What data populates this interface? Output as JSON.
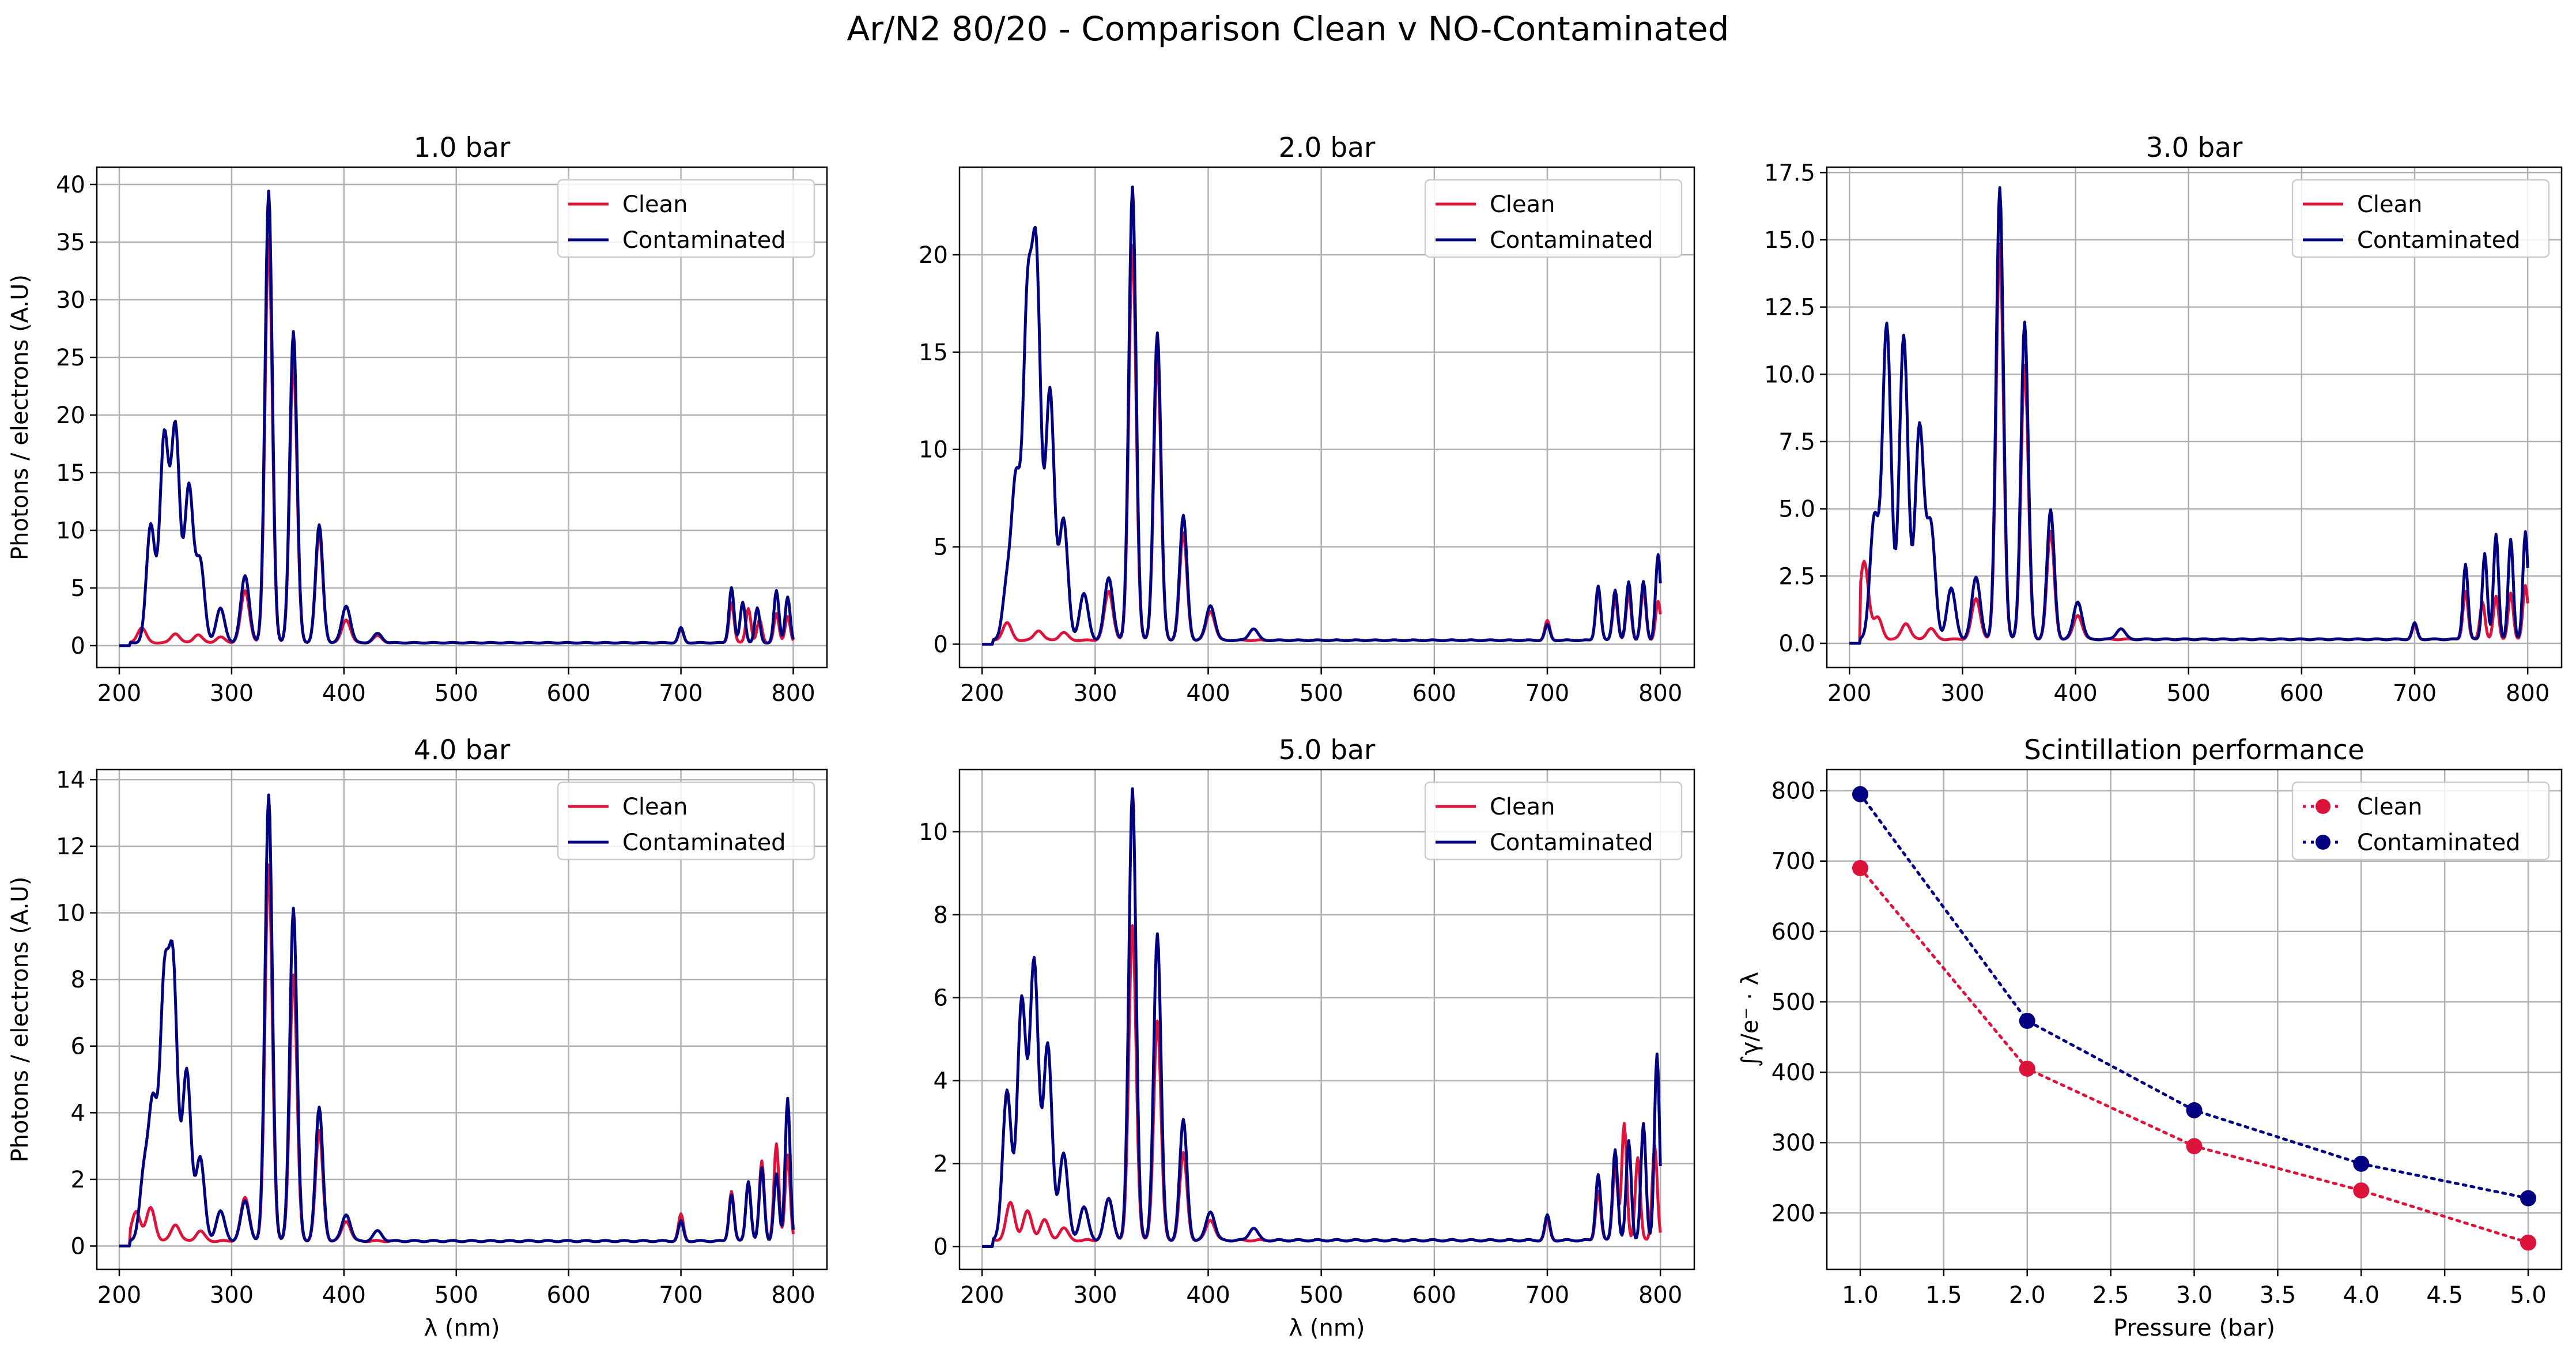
{
  "figure_title": "Ar/N2 80/20 - Comparison Clean v NO-Contaminated",
  "colors": {
    "clean": "#dc143c",
    "contaminated": "#000080",
    "grid": "#b0b0b0"
  },
  "chart_data": [
    {
      "type": "line",
      "title": "1.0 bar",
      "xlabel": "",
      "ylabel": "Photons / electrons (A.U)",
      "xlim": [
        180,
        830
      ],
      "ylim": [
        -1.9,
        41.5
      ],
      "xticks": [
        200,
        300,
        400,
        500,
        600,
        700,
        800
      ],
      "yticks": [
        0,
        5,
        10,
        15,
        20,
        25,
        30,
        35,
        40
      ],
      "grid": true,
      "legend": "top-right",
      "series": [
        {
          "name": "Clean",
          "color": "#dc143c",
          "baseline": 0.25,
          "peaks": [
            [
              220,
              1.3
            ],
            [
              250,
              0.8
            ],
            [
              270,
              0.7
            ],
            [
              290,
              0.5
            ],
            [
              312,
              4.5
            ],
            [
              333,
              35
            ],
            [
              355,
              24.5
            ],
            [
              378,
              9.5
            ],
            [
              402,
              2
            ],
            [
              430,
              0.6
            ],
            [
              700,
              1.2
            ],
            [
              745,
              3.5
            ],
            [
              760,
              3
            ],
            [
              770,
              2
            ],
            [
              785,
              2.5
            ],
            [
              795,
              2.3
            ]
          ]
        },
        {
          "name": "Contaminated",
          "color": "#000080",
          "baseline": 0.25,
          "peaks": [
            [
              228,
              10.2
            ],
            [
              240,
              17.8
            ],
            [
              250,
              18.6
            ],
            [
              262,
              13.5
            ],
            [
              272,
              7
            ],
            [
              290,
              3
            ],
            [
              312,
              5.8
            ],
            [
              333,
              39.2
            ],
            [
              355,
              27
            ],
            [
              378,
              10.2
            ],
            [
              402,
              3.2
            ],
            [
              430,
              0.8
            ],
            [
              700,
              1.3
            ],
            [
              745,
              4.8
            ],
            [
              755,
              3.5
            ],
            [
              768,
              3
            ],
            [
              785,
              4.5
            ],
            [
              795,
              4
            ]
          ]
        }
      ]
    },
    {
      "type": "line",
      "title": "2.0 bar",
      "xlabel": "",
      "ylabel": "",
      "xlim": [
        180,
        830
      ],
      "ylim": [
        -1.2,
        24.5
      ],
      "xticks": [
        200,
        300,
        400,
        500,
        600,
        700,
        800
      ],
      "yticks": [
        0,
        5,
        10,
        15,
        20
      ],
      "grid": true,
      "legend": "top-right",
      "series": [
        {
          "name": "Clean",
          "color": "#dc143c",
          "baseline": 0.2,
          "peaks": [
            [
              222,
              0.9
            ],
            [
              250,
              0.5
            ],
            [
              272,
              0.4
            ],
            [
              312,
              2.5
            ],
            [
              333,
              20.3
            ],
            [
              355,
              14.5
            ],
            [
              378,
              5.5
            ],
            [
              402,
              1.5
            ],
            [
              700,
              1
            ],
            [
              745,
              2.6
            ],
            [
              760,
              2.2
            ],
            [
              772,
              2.4
            ],
            [
              785,
              2.6
            ],
            [
              798,
              2
            ]
          ]
        },
        {
          "name": "Contaminated",
          "color": "#000080",
          "baseline": 0.2,
          "peaks": [
            [
              222,
              2.8
            ],
            [
              230,
              8
            ],
            [
              240,
              16.5
            ],
            [
              248,
              18.8
            ],
            [
              260,
              12.8
            ],
            [
              272,
              6.2
            ],
            [
              290,
              2.4
            ],
            [
              312,
              3.2
            ],
            [
              333,
              23.3
            ],
            [
              355,
              15.8
            ],
            [
              378,
              6.4
            ],
            [
              402,
              1.8
            ],
            [
              440,
              0.6
            ],
            [
              700,
              0.8
            ],
            [
              745,
              2.8
            ],
            [
              760,
              2.6
            ],
            [
              772,
              3
            ],
            [
              785,
              3
            ],
            [
              798,
              4.4
            ]
          ]
        }
      ]
    },
    {
      "type": "line",
      "title": "3.0 bar",
      "xlabel": "",
      "ylabel": "",
      "xlim": [
        180,
        830
      ],
      "ylim": [
        -0.9,
        17.7
      ],
      "xticks": [
        200,
        300,
        400,
        500,
        600,
        700,
        800
      ],
      "yticks": [
        0,
        2.5,
        5,
        7.5,
        10,
        12.5,
        15,
        17.5
      ],
      "grid": true,
      "legend": "top-right",
      "series": [
        {
          "name": "Clean",
          "color": "#dc143c",
          "baseline": 0.15,
          "peaks": [
            [
              213,
              2.9
            ],
            [
              225,
              0.8
            ],
            [
              250,
              0.6
            ],
            [
              272,
              0.4
            ],
            [
              312,
              1.5
            ],
            [
              333,
              14.7
            ],
            [
              355,
              10.2
            ],
            [
              378,
              4
            ],
            [
              402,
              0.9
            ],
            [
              700,
              0.5
            ],
            [
              745,
              1.8
            ],
            [
              760,
              1.4
            ],
            [
              772,
              1.6
            ],
            [
              785,
              1.7
            ],
            [
              798,
              2
            ]
          ]
        },
        {
          "name": "Contaminated",
          "color": "#000080",
          "baseline": 0.15,
          "peaks": [
            [
              222,
              4.5
            ],
            [
              233,
              11.7
            ],
            [
              248,
              11.3
            ],
            [
              262,
              7.9
            ],
            [
              272,
              4.2
            ],
            [
              290,
              1.9
            ],
            [
              312,
              2.3
            ],
            [
              333,
              16.8
            ],
            [
              355,
              11.8
            ],
            [
              378,
              4.8
            ],
            [
              402,
              1.4
            ],
            [
              440,
              0.4
            ],
            [
              700,
              0.6
            ],
            [
              745,
              2.8
            ],
            [
              762,
              3.2
            ],
            [
              772,
              3.9
            ],
            [
              785,
              3.7
            ],
            [
              798,
              4
            ]
          ]
        }
      ]
    },
    {
      "type": "line",
      "title": "4.0 bar",
      "xlabel": "λ (nm)",
      "ylabel": "Photons / electrons (A.U)",
      "xlim": [
        180,
        830
      ],
      "ylim": [
        -0.7,
        14.3
      ],
      "xticks": [
        200,
        300,
        400,
        500,
        600,
        700,
        800
      ],
      "yticks": [
        0,
        2,
        4,
        6,
        8,
        10,
        12,
        14
      ],
      "grid": true,
      "legend": "top-right",
      "series": [
        {
          "name": "Clean",
          "color": "#dc143c",
          "baseline": 0.15,
          "peaks": [
            [
              215,
              0.9
            ],
            [
              228,
              1
            ],
            [
              250,
              0.5
            ],
            [
              272,
              0.3
            ],
            [
              312,
              1.3
            ],
            [
              333,
              11.3
            ],
            [
              355,
              8
            ],
            [
              378,
              3.3
            ],
            [
              402,
              0.6
            ],
            [
              700,
              0.8
            ],
            [
              745,
              1.5
            ],
            [
              760,
              1.8
            ],
            [
              772,
              2.4
            ],
            [
              785,
              2.9
            ],
            [
              795,
              2.6
            ]
          ]
        },
        {
          "name": "Contaminated",
          "color": "#000080",
          "baseline": 0.15,
          "peaks": [
            [
              222,
              2
            ],
            [
              230,
              4
            ],
            [
              240,
              7.4
            ],
            [
              248,
              7.9
            ],
            [
              260,
              5.1
            ],
            [
              272,
              2.5
            ],
            [
              290,
              0.9
            ],
            [
              312,
              1.2
            ],
            [
              333,
              13.4
            ],
            [
              355,
              10
            ],
            [
              378,
              4
            ],
            [
              402,
              0.8
            ],
            [
              430,
              0.3
            ],
            [
              700,
              0.6
            ],
            [
              745,
              1.4
            ],
            [
              760,
              1.8
            ],
            [
              772,
              2.2
            ],
            [
              785,
              2
            ],
            [
              795,
              4.3
            ]
          ]
        }
      ]
    },
    {
      "type": "line",
      "title": "5.0 bar",
      "xlabel": "λ (nm)",
      "ylabel": "",
      "xlim": [
        180,
        830
      ],
      "ylim": [
        -0.55,
        11.5
      ],
      "xticks": [
        200,
        300,
        400,
        500,
        600,
        700,
        800
      ],
      "yticks": [
        0,
        2,
        4,
        6,
        8,
        10
      ],
      "grid": true,
      "legend": "top-right",
      "series": [
        {
          "name": "Clean",
          "color": "#dc143c",
          "baseline": 0.15,
          "peaks": [
            [
              225,
              0.9
            ],
            [
              240,
              0.7
            ],
            [
              255,
              0.5
            ],
            [
              272,
              0.3
            ],
            [
              312,
              1
            ],
            [
              333,
              7.6
            ],
            [
              355,
              5.3
            ],
            [
              378,
              2.1
            ],
            [
              402,
              0.5
            ],
            [
              700,
              0.5
            ],
            [
              745,
              1.2
            ],
            [
              760,
              1.8
            ],
            [
              768,
              2.8
            ],
            [
              780,
              2
            ],
            [
              795,
              2.3
            ]
          ]
        },
        {
          "name": "Contaminated",
          "color": "#000080",
          "baseline": 0.15,
          "peaks": [
            [
              222,
              3.6
            ],
            [
              235,
              5.8
            ],
            [
              246,
              6.7
            ],
            [
              258,
              4.7
            ],
            [
              272,
              2.1
            ],
            [
              290,
              0.8
            ],
            [
              312,
              1
            ],
            [
              333,
              10.9
            ],
            [
              355,
              7.4
            ],
            [
              378,
              2.9
            ],
            [
              402,
              0.7
            ],
            [
              440,
              0.3
            ],
            [
              700,
              0.6
            ],
            [
              745,
              1.6
            ],
            [
              760,
              2.2
            ],
            [
              772,
              2.4
            ],
            [
              785,
              2.8
            ],
            [
              797,
              4.5
            ]
          ]
        }
      ]
    },
    {
      "type": "scatter",
      "title": "Scintillation performance",
      "xlabel": "Pressure (bar)",
      "ylabel": "∫γ/e⁻ · λ",
      "xlim": [
        0.8,
        5.2
      ],
      "ylim": [
        120,
        830
      ],
      "xticks": [
        1.0,
        1.5,
        2.0,
        2.5,
        3.0,
        3.5,
        4.0,
        4.5,
        5.0
      ],
      "yticks": [
        200,
        300,
        400,
        500,
        600,
        700,
        800
      ],
      "grid": true,
      "legend": "top-right",
      "linestyle": "dotted",
      "error_bars": true,
      "x": [
        1.0,
        2.0,
        3.0,
        4.0,
        5.0
      ],
      "series": [
        {
          "name": "Clean",
          "color": "#dc143c",
          "values": [
            690,
            405,
            295,
            232,
            158
          ]
        },
        {
          "name": "Contaminated",
          "color": "#000080",
          "values": [
            795,
            473,
            346,
            270,
            221
          ]
        }
      ]
    }
  ]
}
